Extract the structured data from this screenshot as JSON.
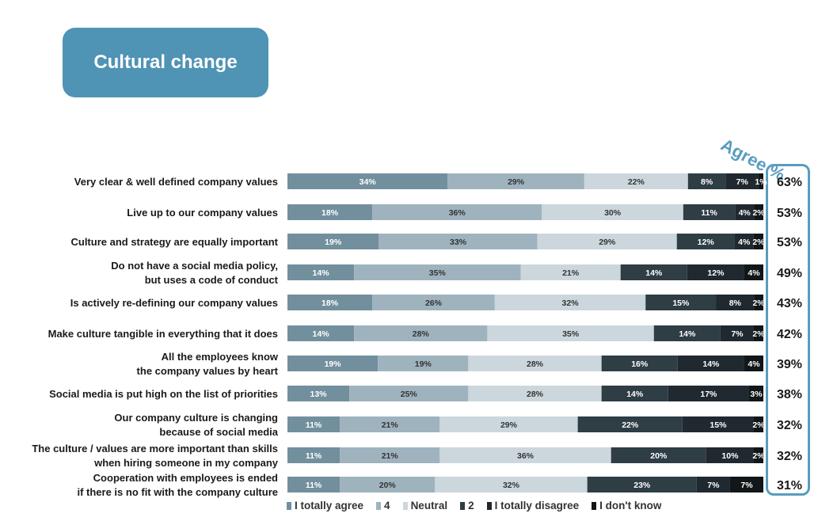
{
  "page": {
    "title": "Cultural change"
  },
  "agree_header": "Agree %",
  "chart_data": {
    "type": "bar",
    "orientation": "horizontal",
    "stacked": true,
    "percent_100": true,
    "categories": [
      "Very clear & well defined company values",
      "Live up to our company values",
      "Culture and strategy are equally important",
      "Do not have a social media policy,\nbut uses a code of conduct",
      "Is actively re-defining our company values",
      "Make culture tangible in everything that it does",
      "All the employees know\nthe company values by heart",
      "Social media is put high on the list of priorities",
      "Our company culture is changing\nbecause of social media",
      "The culture / values are more important than skills\nwhen hiring someone in my company",
      "Cooperation with employees is ended\nif there is no fit with the company culture"
    ],
    "series": [
      {
        "name": "I totally agree",
        "color": "#728f9e",
        "values": [
          34,
          18,
          19,
          14,
          18,
          14,
          19,
          13,
          11,
          11,
          11
        ]
      },
      {
        "name": "4",
        "color": "#9fb3be",
        "values": [
          29,
          36,
          33,
          35,
          26,
          28,
          19,
          25,
          21,
          21,
          20
        ]
      },
      {
        "name": "Neutral",
        "color": "#ccd7dd",
        "values": [
          22,
          30,
          29,
          21,
          32,
          35,
          28,
          28,
          29,
          36,
          32
        ]
      },
      {
        "name": "2",
        "color": "#2f3d45",
        "values": [
          8,
          11,
          12,
          14,
          15,
          14,
          16,
          14,
          22,
          20,
          23
        ]
      },
      {
        "name": "I totally disagree",
        "color": "#20292f",
        "values": [
          7,
          4,
          4,
          12,
          8,
          7,
          14,
          17,
          15,
          10,
          7
        ]
      },
      {
        "name": "I don't know",
        "color": "#111619",
        "values": [
          1,
          2,
          2,
          4,
          2,
          2,
          4,
          3,
          2,
          2,
          7
        ]
      }
    ],
    "agree_percent": [
      "63%",
      "53%",
      "53%",
      "49%",
      "43%",
      "42%",
      "39%",
      "38%",
      "32%",
      "32%",
      "31%"
    ],
    "legend_position": "bottom",
    "grid": false
  }
}
